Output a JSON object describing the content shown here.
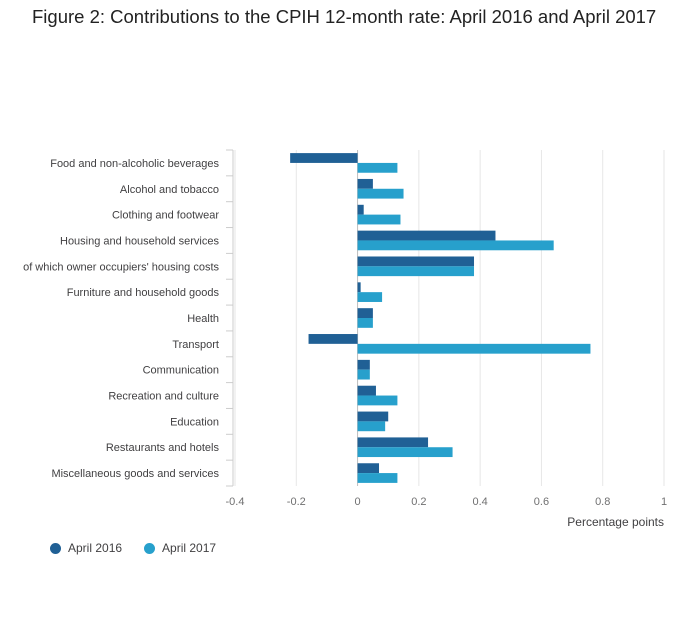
{
  "title": "Figure 2: Contributions to the CPIH 12-month rate: April 2016 and April 2017",
  "colors": {
    "series_2016": "#206095",
    "series_2017": "#27a0cc",
    "grid": "#e6e6e6",
    "axis": "#cccccc"
  },
  "chart_data": {
    "type": "bar",
    "orientation": "horizontal",
    "categories": [
      "Food and non-alcoholic beverages",
      "Alcohol and tobacco",
      "Clothing and footwear",
      "Housing and household services",
      "of which owner occupiers' housing costs",
      "Furniture and household goods",
      "Health",
      "Transport",
      "Communication",
      "Recreation and culture",
      "Education",
      "Restaurants and hotels",
      "Miscellaneous goods and services"
    ],
    "series": [
      {
        "name": "April 2016",
        "values": [
          -0.22,
          0.05,
          0.02,
          0.45,
          0.38,
          0.01,
          0.05,
          -0.16,
          0.04,
          0.06,
          0.1,
          0.23,
          0.07
        ]
      },
      {
        "name": "April 2017",
        "values": [
          0.13,
          0.15,
          0.14,
          0.64,
          0.38,
          0.08,
          0.05,
          0.76,
          0.04,
          0.13,
          0.09,
          0.31,
          0.13
        ]
      }
    ],
    "xlabel": "Percentage points",
    "xlim": [
      -0.4,
      1
    ],
    "xticks": [
      "-0.4",
      "-0.2",
      "0",
      "0.2",
      "0.4",
      "0.6",
      "0.8",
      "1"
    ],
    "grid": true,
    "legend_position": "bottom-left"
  }
}
